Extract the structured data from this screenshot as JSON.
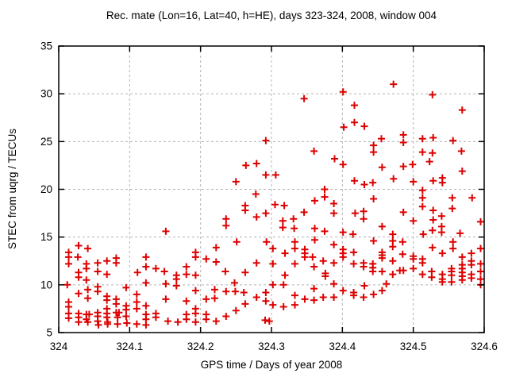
{
  "chart_data": {
    "type": "scatter",
    "title": "Rec. mate (Lon=16, Lat=40, h=HE), days 323-324, 2008, window 004",
    "xlabel": "GPS time / Days of year 2008",
    "ylabel": "STEC from uqrg / TECUs",
    "xlim": [
      324,
      324.6
    ],
    "ylim": [
      5,
      35
    ],
    "xticks": [
      "324",
      "324.1",
      "324.2",
      "324.3",
      "324.4",
      "324.5",
      "324.6"
    ],
    "yticks": [
      "5",
      "10",
      "15",
      "20",
      "25",
      "30",
      "35"
    ],
    "grid": "dashed",
    "legend": false,
    "marker": "plus",
    "marker_color": "#dd0000",
    "points": [
      [
        324.292,
        25.1
      ],
      [
        324.401,
        30.2
      ],
      [
        324.346,
        29.5
      ],
      [
        324.417,
        28.8
      ],
      [
        324.402,
        26.5
      ],
      [
        324.417,
        27.0
      ],
      [
        324.431,
        26.6
      ],
      [
        324.472,
        31.0
      ],
      [
        324.527,
        29.9
      ],
      [
        324.569,
        28.3
      ],
      [
        324.455,
        25.3
      ],
      [
        324.486,
        25.7
      ],
      [
        324.513,
        25.3
      ],
      [
        324.528,
        25.4
      ],
      [
        324.556,
        25.1
      ],
      [
        324.486,
        24.9
      ],
      [
        324.264,
        22.5
      ],
      [
        324.279,
        22.7
      ],
      [
        324.292,
        21.5
      ],
      [
        324.25,
        20.8
      ],
      [
        324.278,
        19.5
      ],
      [
        324.263,
        18.3
      ],
      [
        324.263,
        17.8
      ],
      [
        324.279,
        17.1
      ],
      [
        324.292,
        17.5
      ],
      [
        324.236,
        16.9
      ],
      [
        324.236,
        16.2
      ],
      [
        324.151,
        15.6
      ],
      [
        324.36,
        24.0
      ],
      [
        324.389,
        23.2
      ],
      [
        324.401,
        22.6
      ],
      [
        324.444,
        24.6
      ],
      [
        324.444,
        23.9
      ],
      [
        324.306,
        21.5
      ],
      [
        324.417,
        20.9
      ],
      [
        324.431,
        20.5
      ],
      [
        324.443,
        20.7
      ],
      [
        324.375,
        20.0
      ],
      [
        324.375,
        19.2
      ],
      [
        324.361,
        18.8
      ],
      [
        324.444,
        19.0
      ],
      [
        324.305,
        18.4
      ],
      [
        324.318,
        18.3
      ],
      [
        324.388,
        18.5
      ],
      [
        324.346,
        17.6
      ],
      [
        324.418,
        17.5
      ],
      [
        324.43,
        17.7
      ],
      [
        324.43,
        16.9
      ],
      [
        324.388,
        17.5
      ],
      [
        324.316,
        16.7
      ],
      [
        324.331,
        16.9
      ],
      [
        324.316,
        16.0
      ],
      [
        324.332,
        15.9
      ],
      [
        324.361,
        15.9
      ],
      [
        324.375,
        15.6
      ],
      [
        324.401,
        15.5
      ],
      [
        324.415,
        15.3
      ],
      [
        324.513,
        23.9
      ],
      [
        324.527,
        23.8
      ],
      [
        324.568,
        24.0
      ],
      [
        324.523,
        22.9
      ],
      [
        324.499,
        22.6
      ],
      [
        324.456,
        22.3
      ],
      [
        324.486,
        22.4
      ],
      [
        324.569,
        21.9
      ],
      [
        324.472,
        21.1
      ],
      [
        324.5,
        20.8
      ],
      [
        324.528,
        20.9
      ],
      [
        324.541,
        21.2
      ],
      [
        324.541,
        20.7
      ],
      [
        324.513,
        19.9
      ],
      [
        324.513,
        19.1
      ],
      [
        324.555,
        19.1
      ],
      [
        324.583,
        19.1
      ],
      [
        324.513,
        18.2
      ],
      [
        324.555,
        18.0
      ],
      [
        324.528,
        17.8
      ],
      [
        324.486,
        17.6
      ],
      [
        324.54,
        17.2
      ],
      [
        324.528,
        16.8
      ],
      [
        324.5,
        16.7
      ],
      [
        324.595,
        16.6
      ],
      [
        324.456,
        16.1
      ],
      [
        324.54,
        16.1
      ],
      [
        324.54,
        15.5
      ],
      [
        324.527,
        15.7
      ],
      [
        324.514,
        15.3
      ],
      [
        324.471,
        15.3
      ],
      [
        324.566,
        15.4
      ],
      [
        324.028,
        14.1
      ],
      [
        324.041,
        13.8
      ],
      [
        324.014,
        13.4
      ],
      [
        324.014,
        12.9
      ],
      [
        324.027,
        12.9
      ],
      [
        324.014,
        12.2
      ],
      [
        324.039,
        12.2
      ],
      [
        324.039,
        11.7
      ],
      [
        324.055,
        12.3
      ],
      [
        324.055,
        11.4
      ],
      [
        324.068,
        12.5
      ],
      [
        324.068,
        11.1
      ],
      [
        324.081,
        12.8
      ],
      [
        324.081,
        12.3
      ],
      [
        324.123,
        12.9
      ],
      [
        324.123,
        11.9
      ],
      [
        324.137,
        11.7
      ],
      [
        324.149,
        11.4
      ],
      [
        324.111,
        11.3
      ],
      [
        324.028,
        11.3
      ],
      [
        324.028,
        10.8
      ],
      [
        324.039,
        10.5
      ],
      [
        324.123,
        10.2
      ],
      [
        324.012,
        10.0
      ],
      [
        324.095,
        9.7
      ],
      [
        324.055,
        9.8
      ],
      [
        324.055,
        9.3
      ],
      [
        324.041,
        9.5
      ],
      [
        324.041,
        8.6
      ],
      [
        324.028,
        9.1
      ],
      [
        324.014,
        8.2
      ],
      [
        324.014,
        7.7
      ],
      [
        324.014,
        7.0
      ],
      [
        324.014,
        6.5
      ],
      [
        324.028,
        7.0
      ],
      [
        324.028,
        6.6
      ],
      [
        324.028,
        6.1
      ],
      [
        324.039,
        6.9
      ],
      [
        324.043,
        6.9
      ],
      [
        324.039,
        6.4
      ],
      [
        324.041,
        6.1
      ],
      [
        324.055,
        7.1
      ],
      [
        324.055,
        6.7
      ],
      [
        324.055,
        6.2
      ],
      [
        324.056,
        5.8
      ],
      [
        324.068,
        8.8
      ],
      [
        324.068,
        8.4
      ],
      [
        324.068,
        7.5
      ],
      [
        324.068,
        7.0
      ],
      [
        324.068,
        6.6
      ],
      [
        324.069,
        6.1
      ],
      [
        324.069,
        5.9
      ],
      [
        324.081,
        8.5
      ],
      [
        324.081,
        8.0
      ],
      [
        324.081,
        7.1
      ],
      [
        324.085,
        7.1
      ],
      [
        324.083,
        6.6
      ],
      [
        324.083,
        5.9
      ],
      [
        324.095,
        7.8
      ],
      [
        324.095,
        7.4
      ],
      [
        324.095,
        6.7
      ],
      [
        324.096,
        6.0
      ],
      [
        324.11,
        9.0
      ],
      [
        324.11,
        8.2
      ],
      [
        324.11,
        7.5
      ],
      [
        324.11,
        5.9
      ],
      [
        324.123,
        7.8
      ],
      [
        324.123,
        6.9
      ],
      [
        324.123,
        6.4
      ],
      [
        324.123,
        5.8
      ],
      [
        324.137,
        7.0
      ],
      [
        324.137,
        6.6
      ],
      [
        324.251,
        14.5
      ],
      [
        324.293,
        14.5
      ],
      [
        324.222,
        13.9
      ],
      [
        324.193,
        13.4
      ],
      [
        324.193,
        12.9
      ],
      [
        324.208,
        12.7
      ],
      [
        324.222,
        12.4
      ],
      [
        324.279,
        12.3
      ],
      [
        324.18,
        11.9
      ],
      [
        324.18,
        11.1
      ],
      [
        324.193,
        11.0
      ],
      [
        324.235,
        11.4
      ],
      [
        324.263,
        11.3
      ],
      [
        324.166,
        11.0
      ],
      [
        324.166,
        10.6
      ],
      [
        324.151,
        10.1
      ],
      [
        324.166,
        9.9
      ],
      [
        324.193,
        9.4
      ],
      [
        324.22,
        9.5
      ],
      [
        324.22,
        8.6
      ],
      [
        324.248,
        10.2
      ],
      [
        324.236,
        9.3
      ],
      [
        324.249,
        9.3
      ],
      [
        324.261,
        9.2
      ],
      [
        324.279,
        8.7
      ],
      [
        324.292,
        9.2
      ],
      [
        324.292,
        8.3
      ],
      [
        324.151,
        8.5
      ],
      [
        324.18,
        8.3
      ],
      [
        324.208,
        8.5
      ],
      [
        324.263,
        8.0
      ],
      [
        324.193,
        7.5
      ],
      [
        324.193,
        7.0
      ],
      [
        324.193,
        6.1
      ],
      [
        324.208,
        6.9
      ],
      [
        324.208,
        6.4
      ],
      [
        324.18,
        6.9
      ],
      [
        324.18,
        6.4
      ],
      [
        324.168,
        6.1
      ],
      [
        324.154,
        6.2
      ],
      [
        324.25,
        7.3
      ],
      [
        324.236,
        6.7
      ],
      [
        324.222,
        6.2
      ],
      [
        324.291,
        6.3
      ],
      [
        324.297,
        6.2
      ],
      [
        324.333,
        14.5
      ],
      [
        324.361,
        14.7
      ],
      [
        324.388,
        14.2
      ],
      [
        324.444,
        14.6
      ],
      [
        324.302,
        13.8
      ],
      [
        324.319,
        13.3
      ],
      [
        324.333,
        13.8
      ],
      [
        324.347,
        13.7
      ],
      [
        324.347,
        13.3
      ],
      [
        324.347,
        12.9
      ],
      [
        324.358,
        12.9
      ],
      [
        324.401,
        13.7
      ],
      [
        324.401,
        13.3
      ],
      [
        324.401,
        12.9
      ],
      [
        324.416,
        13.4
      ],
      [
        324.302,
        12.2
      ],
      [
        324.333,
        12.2
      ],
      [
        324.36,
        11.9
      ],
      [
        324.373,
        12.5
      ],
      [
        324.388,
        12.3
      ],
      [
        324.416,
        12.2
      ],
      [
        324.43,
        12.3
      ],
      [
        324.43,
        11.9
      ],
      [
        324.443,
        12.2
      ],
      [
        324.443,
        11.8
      ],
      [
        324.443,
        11.4
      ],
      [
        324.319,
        11.0
      ],
      [
        324.376,
        11.2
      ],
      [
        324.376,
        10.9
      ],
      [
        324.302,
        10.0
      ],
      [
        324.317,
        10.0
      ],
      [
        324.388,
        10.1
      ],
      [
        324.431,
        9.9
      ],
      [
        324.36,
        9.6
      ],
      [
        324.333,
        8.9
      ],
      [
        324.347,
        8.5
      ],
      [
        324.36,
        8.4
      ],
      [
        324.373,
        8.7
      ],
      [
        324.388,
        8.7
      ],
      [
        324.401,
        9.4
      ],
      [
        324.416,
        9.2
      ],
      [
        324.416,
        8.9
      ],
      [
        324.43,
        8.7
      ],
      [
        324.444,
        9.0
      ],
      [
        324.302,
        7.9
      ],
      [
        324.317,
        7.7
      ],
      [
        324.333,
        7.9
      ],
      [
        324.471,
        14.6
      ],
      [
        324.485,
        14.5
      ],
      [
        324.471,
        14.0
      ],
      [
        324.556,
        14.5
      ],
      [
        324.556,
        13.8
      ],
      [
        324.527,
        13.9
      ],
      [
        324.456,
        13.4
      ],
      [
        324.456,
        13.1
      ],
      [
        324.456,
        12.8
      ],
      [
        324.485,
        13.2
      ],
      [
        324.5,
        13.0
      ],
      [
        324.5,
        12.7
      ],
      [
        324.471,
        12.5
      ],
      [
        324.513,
        12.7
      ],
      [
        324.513,
        12.3
      ],
      [
        324.541,
        13.3
      ],
      [
        324.569,
        12.9
      ],
      [
        324.582,
        13.3
      ],
      [
        324.595,
        13.8
      ],
      [
        324.582,
        12.5
      ],
      [
        324.582,
        12.1
      ],
      [
        324.595,
        12.2
      ],
      [
        324.456,
        11.4
      ],
      [
        324.471,
        11.1
      ],
      [
        324.481,
        11.5
      ],
      [
        324.486,
        11.5
      ],
      [
        324.5,
        11.7
      ],
      [
        324.513,
        11.1
      ],
      [
        324.526,
        11.4
      ],
      [
        324.526,
        10.8
      ],
      [
        324.541,
        11.1
      ],
      [
        324.541,
        10.6
      ],
      [
        324.554,
        11.7
      ],
      [
        324.554,
        11.4
      ],
      [
        324.554,
        11.0
      ],
      [
        324.569,
        12.1
      ],
      [
        324.569,
        11.7
      ],
      [
        324.569,
        11.3
      ],
      [
        324.569,
        10.9
      ],
      [
        324.569,
        10.5
      ],
      [
        324.582,
        11.1
      ],
      [
        324.582,
        10.7
      ],
      [
        324.595,
        11.4
      ],
      [
        324.595,
        10.6
      ],
      [
        324.541,
        10.3
      ],
      [
        324.554,
        10.3
      ],
      [
        324.595,
        10.0
      ],
      [
        324.456,
        9.4
      ],
      [
        324.462,
        10.1
      ]
    ]
  }
}
